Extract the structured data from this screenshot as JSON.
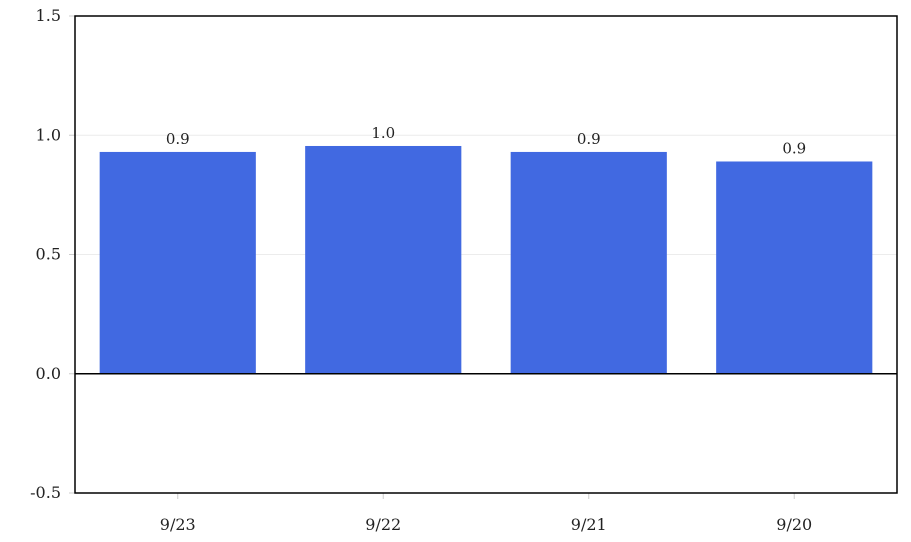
{
  "chart_data": {
    "type": "bar",
    "title": "",
    "xlabel": "",
    "ylabel": "",
    "categories": [
      "9/23",
      "9/22",
      "9/21",
      "9/20"
    ],
    "values": [
      0.93,
      0.955,
      0.93,
      0.89
    ],
    "value_labels": [
      "0.9",
      "1.0",
      "0.9",
      "0.9"
    ],
    "ylim": [
      -0.5,
      1.5
    ],
    "yticks": [
      -0.5,
      0.0,
      0.5,
      1.0,
      1.5
    ],
    "ytick_labels": [
      "-0.5",
      "0.0",
      "0.5",
      "1.0",
      "1.5"
    ],
    "grid": true,
    "legend": "none",
    "bar_color": "#4169E1"
  }
}
